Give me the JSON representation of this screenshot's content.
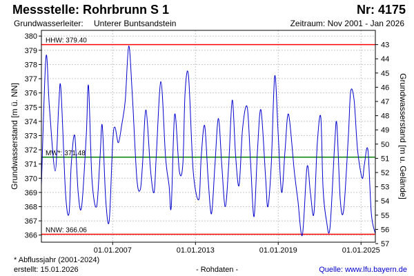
{
  "header": {
    "title": "Messstelle: Rohrbrunn S 1",
    "nr": "Nr: 4175",
    "aquifer_label": "Grundwasserleiter:",
    "aquifer_value": "Unterer Buntsandstein",
    "period": "Zeitraum: Nov 2001 - Jan 2026"
  },
  "footer": {
    "footnote": "* Abflussjahr (2001-2024)",
    "created": "erstellt:  15.01.2026",
    "rawdata": "- Rohdaten -",
    "source": "Quelle: www.lfu.bayern.de"
  },
  "colors": {
    "series": "#0000cc",
    "hhw": "#ff0000",
    "nnw": "#ff0000",
    "mw": "#008000",
    "grid": "#c8c8c8",
    "frame": "#000000"
  },
  "chart_data": {
    "type": "line",
    "xlabel": "",
    "ylabel": "Grundwasserstand [m ü. NN]",
    "y2label": "Grundwasserstand [m u. Gelände]",
    "xlim": [
      "2001-11-01",
      "2026-01-15"
    ],
    "ylim": [
      365.5,
      380.4
    ],
    "y2lim": [
      56.9,
      42.0
    ],
    "x_ticks": [
      {
        "date": "2007-01-01",
        "label": "01.01.2007"
      },
      {
        "date": "2013-01-01",
        "label": "01.01.2013"
      },
      {
        "date": "2019-01-01",
        "label": "01.01.2019"
      },
      {
        "date": "2025-01-01",
        "label": "01.01.2025"
      }
    ],
    "y_ticks": [
      366,
      367,
      368,
      369,
      370,
      371,
      372,
      373,
      374,
      375,
      376,
      377,
      378,
      379,
      380
    ],
    "y2_ticks": [
      43,
      44,
      45,
      46,
      47,
      48,
      49,
      50,
      51,
      52,
      53,
      54,
      55,
      56,
      57
    ],
    "grid": true,
    "reference_lines": [
      {
        "label": "HHW: 379.40",
        "value": 379.4
      },
      {
        "label": "MW*: 371.48",
        "value": 371.48
      },
      {
        "label": "NNW: 366.06",
        "value": 366.06
      }
    ],
    "series": [
      {
        "x": [
          "2001-11-01",
          "2002-03-01",
          "2002-06-01",
          "2002-11-01",
          "2003-02-01",
          "2003-04-01",
          "2003-08-01",
          "2003-11-01",
          "2004-01-01",
          "2004-04-01",
          "2004-07-01",
          "2004-10-01",
          "2005-02-01",
          "2005-04-01",
          "2005-07-01",
          "2005-11-01",
          "2006-02-01",
          "2006-04-01",
          "2006-07-01",
          "2006-10-01",
          "2007-01-01",
          "2007-03-01",
          "2007-06-01",
          "2007-09-01",
          "2007-12-01",
          "2008-03-01",
          "2008-06-01",
          "2008-10-01",
          "2009-01-01",
          "2009-03-01",
          "2009-06-01",
          "2009-10-01",
          "2010-01-01",
          "2010-03-01",
          "2010-07-01",
          "2010-11-01",
          "2011-02-01",
          "2011-04-01",
          "2011-07-01",
          "2011-11-01",
          "2012-02-01",
          "2012-04-01",
          "2012-07-01",
          "2012-11-01",
          "2013-04-01",
          "2013-06-01",
          "2013-09-01",
          "2013-12-01",
          "2014-03-01",
          "2014-06-01",
          "2014-09-01",
          "2014-12-01",
          "2015-03-01",
          "2015-06-01",
          "2015-09-01",
          "2015-12-01",
          "2016-03-01",
          "2016-06-01",
          "2016-10-01",
          "2017-01-01",
          "2017-04-01",
          "2017-07-01",
          "2017-10-01",
          "2018-02-01",
          "2018-04-01",
          "2018-07-01",
          "2018-10-01",
          "2019-01-01",
          "2019-04-01",
          "2019-07-01",
          "2019-10-01",
          "2020-03-01",
          "2020-06-01",
          "2020-10-01",
          "2021-02-01",
          "2021-05-01",
          "2021-08-01",
          "2021-11-01",
          "2022-02-01",
          "2022-04-01",
          "2022-07-01",
          "2022-10-01",
          "2023-02-01",
          "2023-04-01",
          "2023-07-01",
          "2023-10-01",
          "2024-02-01",
          "2024-04-01",
          "2024-07-01",
          "2024-10-01",
          "2025-02-01",
          "2025-04-01",
          "2025-07-01",
          "2025-10-01",
          "2026-01-15"
        ],
        "y": [
          369.5,
          378.5,
          375.0,
          370.5,
          375.0,
          376.3,
          369.0,
          367.5,
          371.0,
          373.0,
          369.0,
          368.0,
          373.0,
          376.5,
          370.0,
          368.0,
          371.5,
          373.7,
          368.5,
          367.0,
          372.5,
          373.6,
          372.5,
          373.8,
          375.5,
          379.3,
          376.0,
          370.0,
          369.2,
          371.0,
          374.8,
          370.5,
          369.0,
          371.6,
          376.8,
          371.5,
          369.5,
          368.0,
          374.5,
          370.5,
          371.0,
          376.0,
          377.2,
          370.5,
          368.5,
          371.5,
          373.7,
          370.0,
          367.5,
          371.0,
          374.2,
          370.8,
          368.0,
          371.0,
          375.5,
          371.5,
          369.5,
          373.5,
          375.0,
          371.0,
          367.3,
          372.0,
          374.8,
          370.0,
          368.0,
          371.0,
          377.2,
          373.0,
          369.0,
          372.0,
          374.5,
          370.5,
          368.5,
          366.0,
          370.8,
          369.0,
          367.5,
          372.5,
          374.3,
          369.3,
          367.0,
          366.5,
          372.3,
          373.8,
          368.5,
          367.8,
          373.0,
          376.1,
          375.5,
          372.0,
          370.0,
          371.0,
          372.0,
          367.5,
          366.1
        ]
      }
    ]
  }
}
